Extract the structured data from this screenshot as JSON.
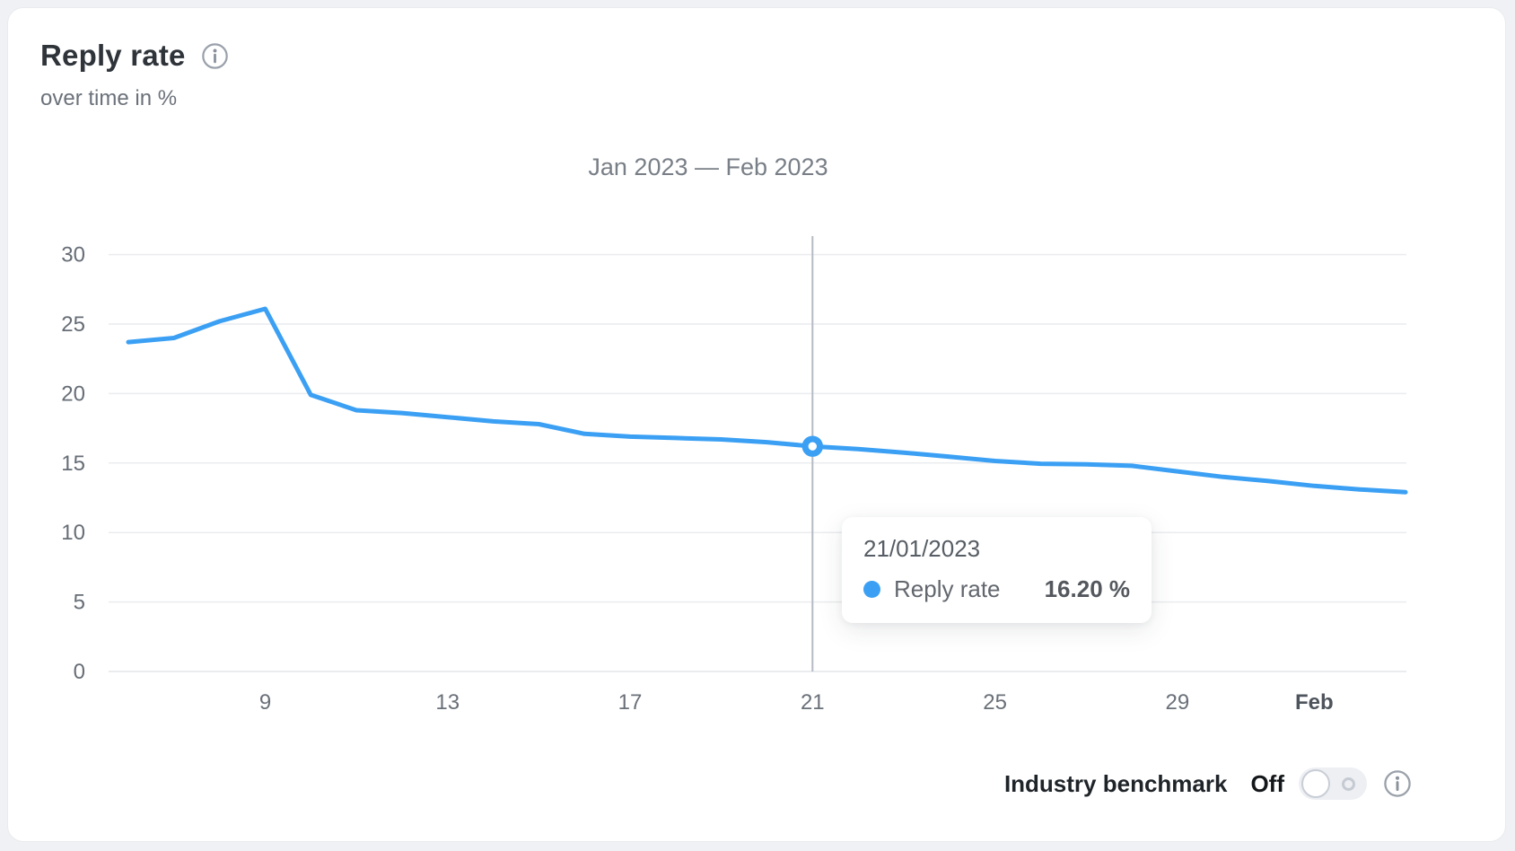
{
  "card": {
    "title": "Reply rate",
    "subtitle": "over time in %"
  },
  "chart_data": {
    "type": "line",
    "title": "Jan 2023 — Feb 2023",
    "xlabel": "",
    "ylabel": "Reply rate (%)",
    "ylim": [
      0,
      30
    ],
    "grid": true,
    "legend_position": "tooltip-only",
    "y_ticks": [
      0,
      5,
      10,
      15,
      20,
      25,
      30
    ],
    "x_dates": [
      "06/01/2023",
      "07/01/2023",
      "08/01/2023",
      "09/01/2023",
      "10/01/2023",
      "11/01/2023",
      "12/01/2023",
      "13/01/2023",
      "14/01/2023",
      "15/01/2023",
      "16/01/2023",
      "17/01/2023",
      "18/01/2023",
      "19/01/2023",
      "20/01/2023",
      "21/01/2023",
      "22/01/2023",
      "23/01/2023",
      "24/01/2023",
      "25/01/2023",
      "26/01/2023",
      "27/01/2023",
      "28/01/2023",
      "29/01/2023",
      "30/01/2023",
      "31/01/2023",
      "01/02/2023",
      "02/02/2023",
      "03/02/2023"
    ],
    "x_ticks": [
      {
        "label": "9",
        "index": 3,
        "bold": false
      },
      {
        "label": "13",
        "index": 7,
        "bold": false
      },
      {
        "label": "17",
        "index": 11,
        "bold": false
      },
      {
        "label": "21",
        "index": 15,
        "bold": false
      },
      {
        "label": "25",
        "index": 19,
        "bold": false
      },
      {
        "label": "29",
        "index": 23,
        "bold": false
      },
      {
        "label": "Feb",
        "index": 26,
        "bold": true
      }
    ],
    "series": [
      {
        "name": "Reply rate",
        "values": [
          23.7,
          24.0,
          25.2,
          26.1,
          19.9,
          18.8,
          18.6,
          18.3,
          18.0,
          17.8,
          17.1,
          16.9,
          16.8,
          16.7,
          16.5,
          16.2,
          16.0,
          15.75,
          15.45,
          15.15,
          14.95,
          14.9,
          14.8,
          14.4,
          14.0,
          13.7,
          13.35,
          13.1,
          12.9
        ]
      }
    ],
    "highlight": {
      "index": 15,
      "date": "21/01/2023",
      "value": 16.2,
      "display": "16.20 %"
    },
    "colors": {
      "line": "#3ba0f4",
      "grid_line": "#eaecef",
      "axis_line": "#e3e5e9",
      "crosshair": "#b5bbc3",
      "y_label": "#666d76",
      "x_label": "#6a7079",
      "x_label_bold": "#4e545c"
    }
  },
  "tooltip": {
    "date": "21/01/2023",
    "series_label": "Reply rate",
    "value_display": "16.20 %"
  },
  "footer": {
    "benchmark_label": "Industry benchmark",
    "state_label": "Off"
  }
}
